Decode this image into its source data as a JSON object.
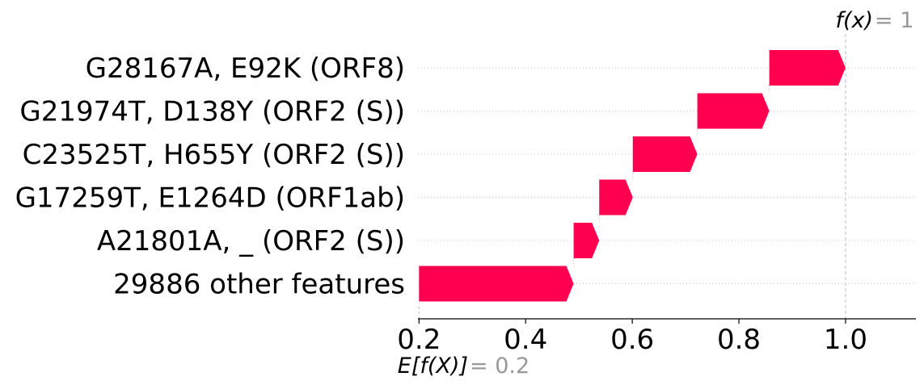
{
  "chart_data": {
    "type": "waterfall",
    "base_label": {
      "expr": "E[f(X)]",
      "eq": " = 0.2"
    },
    "base_value": 0.2,
    "final_label": {
      "expr": "f(x)",
      "eq": " = 1"
    },
    "final_value": 1.0,
    "features": [
      {
        "label": "G28167A, E92K (ORF8)",
        "start": 0.857,
        "end": 1.0
      },
      {
        "label": "G21974T, D138Y (ORF2 (S))",
        "start": 0.722,
        "end": 0.857
      },
      {
        "label": "C23525T, H655Y (ORF2 (S))",
        "start": 0.601,
        "end": 0.722
      },
      {
        "label": "G17259T, E1264D (ORF1ab)",
        "start": 0.538,
        "end": 0.601
      },
      {
        "label": "A21801A, _ (ORF2 (S))",
        "start": 0.49,
        "end": 0.538
      },
      {
        "label": "29886 other features",
        "start": 0.2,
        "end": 0.49
      }
    ],
    "xlim": [
      0.198,
      1.132
    ],
    "xticks": [
      "0.2",
      "0.4",
      "0.6",
      "0.8",
      "1.0"
    ],
    "xtick_values": [
      0.2,
      0.4,
      0.6,
      0.8,
      1.0
    ],
    "bar_color": "#ff0051",
    "grid": "dotted horizontal",
    "reference_line_color": "#bbbbbb",
    "annotation_value_color": "#999999"
  }
}
